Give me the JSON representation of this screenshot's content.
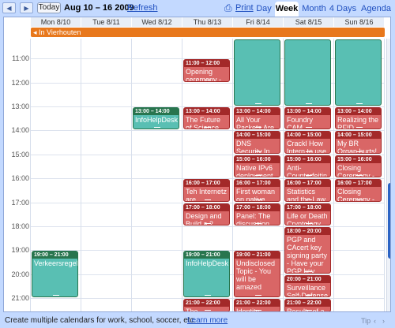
{
  "toolbar": {
    "today_label": "Today",
    "date_range": "Aug 10 – 16 2009",
    "refresh_label": "Refresh",
    "print_label": "Print",
    "views": [
      "Day",
      "Week",
      "Month",
      "4 Days",
      "Agenda"
    ],
    "active_view": "Week"
  },
  "days": [
    "Mon 8/10",
    "Tue 8/11",
    "Wed 8/12",
    "Thu 8/13",
    "Fri 8/14",
    "Sat 8/15",
    "Sun 8/16"
  ],
  "allday_banner": "In Vierhouten",
  "hours": [
    "11:00",
    "12:00",
    "13:00",
    "14:00",
    "15:00",
    "16:00",
    "17:00",
    "18:00",
    "19:00",
    "20:00",
    "21:00"
  ],
  "events": [
    {
      "day": 0,
      "start": 19,
      "end": 21,
      "time": "19:00 – 21:00",
      "title": "Verkeersregelaarles",
      "color": "teal"
    },
    {
      "day": 2,
      "start": 13,
      "end": 14,
      "time": "13:00 – 14:00",
      "title": "InfoHelpDesk",
      "color": "teal"
    },
    {
      "day": 3,
      "start": 11,
      "end": 12,
      "time": "11:00 – 12:00",
      "title": "Opening ceremony -",
      "color": "red"
    },
    {
      "day": 3,
      "start": 13,
      "end": 14,
      "time": "13:00 – 14:00",
      "title": "The Future of Science",
      "color": "red"
    },
    {
      "day": 3,
      "start": 16,
      "end": 17,
      "time": "16:00 – 17:00",
      "title": "Teh Internetz are",
      "color": "red"
    },
    {
      "day": 3,
      "start": 17,
      "end": 18,
      "time": "17:00 – 18:00",
      "title": "Design and Build a 2",
      "color": "red"
    },
    {
      "day": 3,
      "start": 19,
      "end": 21,
      "time": "19:00 – 21:00",
      "title": "InfoHelpDesk",
      "color": "teal"
    },
    {
      "day": 3,
      "start": 21,
      "end": 22,
      "time": "21:00 – 22:00",
      "title": "The Complex Ethics of",
      "color": "red"
    },
    {
      "day": 4,
      "start": 10,
      "end": 13,
      "time": "",
      "title": "",
      "color": "teal"
    },
    {
      "day": 4,
      "start": 13,
      "end": 14,
      "time": "13:00 – 14:00",
      "title": "All Your Packets Are",
      "color": "red"
    },
    {
      "day": 4,
      "start": 14,
      "end": 15,
      "time": "14:00 – 15:00",
      "title": "DNS Security In The",
      "color": "red"
    },
    {
      "day": 4,
      "start": 15,
      "end": 16,
      "time": "15:00 – 16:00",
      "title": "Native IPv6 deployment",
      "color": "red"
    },
    {
      "day": 4,
      "start": 16,
      "end": 17,
      "time": "16:00 – 17:00",
      "title": "First woman on native",
      "color": "red"
    },
    {
      "day": 4,
      "start": 17,
      "end": 18,
      "time": "17:00 – 18:00",
      "title": "Panel: The discussion",
      "color": "red"
    },
    {
      "day": 4,
      "start": 19,
      "end": 21,
      "time": "19:00 – 21:00",
      "title": "Undisclosed Topic - You will be amazed",
      "color": "red"
    },
    {
      "day": 4,
      "start": 21,
      "end": 22,
      "time": "21:00 – 22:00",
      "title": "Identity processes -",
      "color": "red"
    },
    {
      "day": 5,
      "start": 10,
      "end": 13,
      "time": "",
      "title": "",
      "color": "teal"
    },
    {
      "day": 5,
      "start": 13,
      "end": 14,
      "time": "13:00 – 14:00",
      "title": "Foundry CAM hacking",
      "color": "red"
    },
    {
      "day": 5,
      "start": 14,
      "end": 15,
      "time": "14:00 – 15:00",
      "title": "Crackl How Intern to use",
      "color": "red"
    },
    {
      "day": 5,
      "start": 15,
      "end": 16,
      "time": "15:00 – 16:00",
      "title": "Anti-Counterfeitin",
      "color": "red"
    },
    {
      "day": 5,
      "start": 16,
      "end": 17,
      "time": "16:00 – 17:00",
      "title": "Statistics and the Law",
      "color": "red"
    },
    {
      "day": 5,
      "start": 17,
      "end": 18,
      "time": "17:00 – 18:00",
      "title": "Life or Death Cryptology",
      "color": "red"
    },
    {
      "day": 5,
      "start": 18,
      "end": 20,
      "time": "18:00 – 20:00",
      "title": "PGP and CAcert key signing party - Have your PGP key",
      "color": "red"
    },
    {
      "day": 5,
      "start": 20,
      "end": 21,
      "time": "20:00 – 21:00",
      "title": "Surveillance Self-Defense",
      "color": "red"
    },
    {
      "day": 5,
      "start": 21,
      "end": 22,
      "time": "21:00 – 22:00",
      "title": "Results of a Security",
      "color": "red"
    },
    {
      "day": 6,
      "start": 10,
      "end": 13,
      "time": "",
      "title": "",
      "color": "teal"
    },
    {
      "day": 6,
      "start": 13,
      "end": 14,
      "time": "13:00 – 14:00",
      "title": "Realizing the RFID",
      "color": "red"
    },
    {
      "day": 6,
      "start": 14,
      "end": 15,
      "time": "14:00 – 15:00",
      "title": "My BR Organ hurts! using",
      "color": "red"
    },
    {
      "day": 6,
      "start": 15,
      "end": 16,
      "time": "15:00 – 16:00",
      "title": "Closing Ceremony -",
      "color": "red"
    },
    {
      "day": 6,
      "start": 16,
      "end": 17,
      "time": "16:00 – 17:00",
      "title": "Closing Ceremony -",
      "color": "red"
    }
  ],
  "footer": {
    "text": "Create multiple calendars for work, school, soccer, etc.",
    "link": "Learn more",
    "tip": "Tip"
  },
  "colors": {
    "red": "#d96666",
    "red_dark": "#a32929",
    "teal": "#59bfb3",
    "teal_dark": "#28754e",
    "banner": "#e8781c",
    "chrome": "#c3d9ff"
  }
}
